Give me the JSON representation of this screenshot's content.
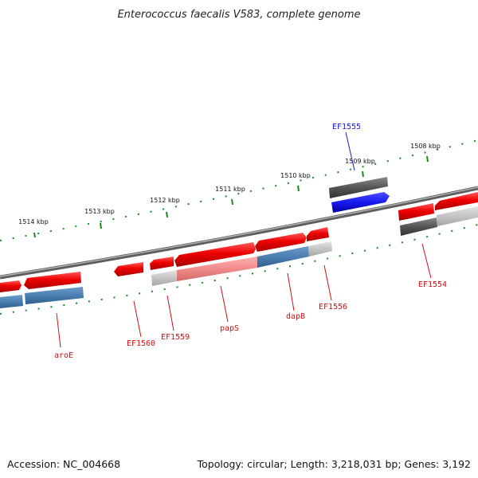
{
  "title": "Enterococcus faecalis V583, complete genome",
  "footer": {
    "accession": "Accession: NC_004668",
    "summary": "Topology: circular; Length: 3,218,031 bp; Genes: 3,192"
  },
  "ticks": [
    "1508 kbp",
    "1509 kbp",
    "1510 kbp",
    "1511 kbp",
    "1512 kbp",
    "1513 kbp",
    "1514 kbp"
  ],
  "genes": [
    "EF1554",
    "EF1555",
    "EF1556",
    "dapB",
    "papS",
    "EF1559",
    "EF1560",
    "aroE"
  ],
  "colors": {
    "forward_gene": "#ee0000",
    "highlight_gene": "#1a1aee",
    "cds_blue": "#4a7fb0",
    "cds_gray": "#555555",
    "backbone": "#7a7a7a",
    "tick_green": "#1c8a1c",
    "label_red": "#cc1111",
    "label_blue": "#1a1acc"
  }
}
